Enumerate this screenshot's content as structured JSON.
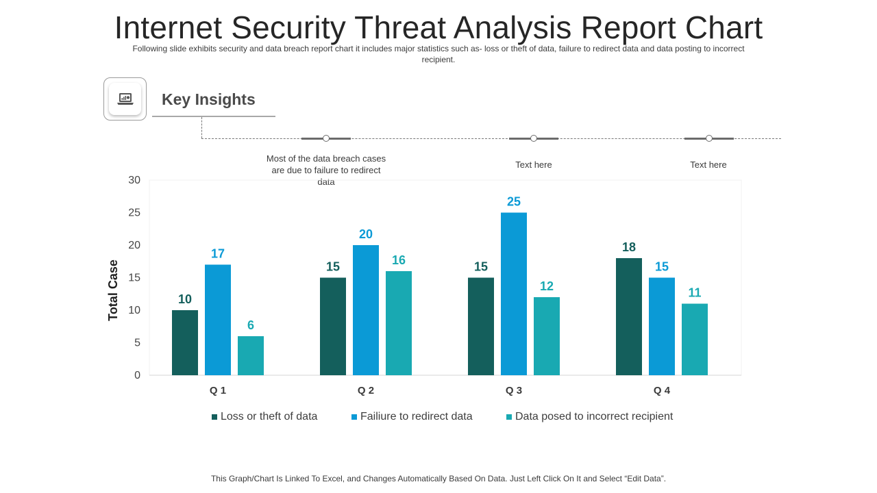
{
  "header": {
    "title": "Internet Security Threat Analysis Report Chart",
    "subtitle": "Following slide exhibits security and data breach report chart it includes major statistics such as- loss or theft of data, failure to redirect data and data posting to incorrect recipient."
  },
  "insights": {
    "heading": "Key Insights",
    "icon": "laptop-chart-icon",
    "items": [
      {
        "text": "Most of the data breach cases are due to failure to redirect data"
      },
      {
        "text": "Text here"
      },
      {
        "text": "Text here"
      }
    ]
  },
  "chart_data": {
    "type": "bar",
    "title": "",
    "xlabel": "",
    "ylabel": "Total Case",
    "ylim": [
      0,
      30
    ],
    "yticks": [
      0,
      5,
      10,
      15,
      20,
      25,
      30
    ],
    "categories": [
      "Q 1",
      "Q 2",
      "Q 3",
      "Q 4"
    ],
    "series": [
      {
        "name": "Loss or theft of data",
        "color": "#145f5c",
        "values": [
          10,
          15,
          15,
          18
        ]
      },
      {
        "name": "Failiure to redirect data",
        "color": "#0b9ad6",
        "values": [
          17,
          20,
          25,
          15
        ]
      },
      {
        "name": "Data posed to incorrect recipient",
        "color": "#19a9b2",
        "values": [
          6,
          16,
          12,
          11
        ]
      }
    ],
    "grid": false,
    "legend": "bottom"
  },
  "footer": {
    "note": "This Graph/Chart Is Linked To Excel, and Changes Automatically Based On Data. Just Left Click On It and Select “Edit Data”."
  }
}
